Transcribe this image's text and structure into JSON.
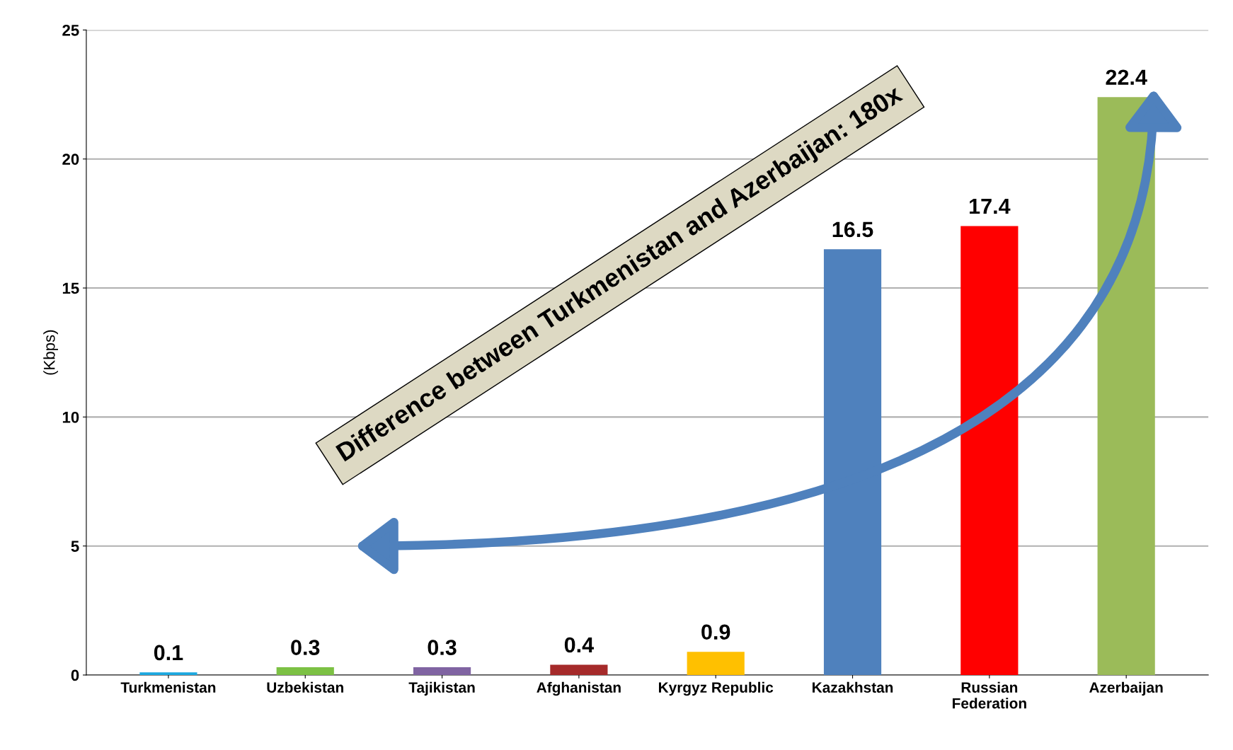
{
  "chart_data": {
    "type": "bar",
    "ylabel": "(Kbps)",
    "categories": [
      "Turkmenistan",
      "Uzbekistan",
      "Tajikistan",
      "Afghanistan",
      "Kyrgyz Republic",
      "Kazakhstan",
      "Russian\nFederation",
      "Azerbaijan"
    ],
    "values": [
      0.1,
      0.3,
      0.3,
      0.4,
      0.9,
      16.5,
      17.4,
      22.4
    ],
    "colors": [
      "#1ca9e0",
      "#7cc144",
      "#8064a2",
      "#a52a2a",
      "#ffc000",
      "#4f81bd",
      "#ff0000",
      "#9bbb59"
    ],
    "ylim": [
      0,
      25
    ],
    "yticks": [
      0,
      5,
      10,
      15,
      20,
      25
    ],
    "grid": "y",
    "data_labels": true,
    "annotations": [
      "Difference between Turkmenistan and Azerbaijan: 180x"
    ]
  }
}
